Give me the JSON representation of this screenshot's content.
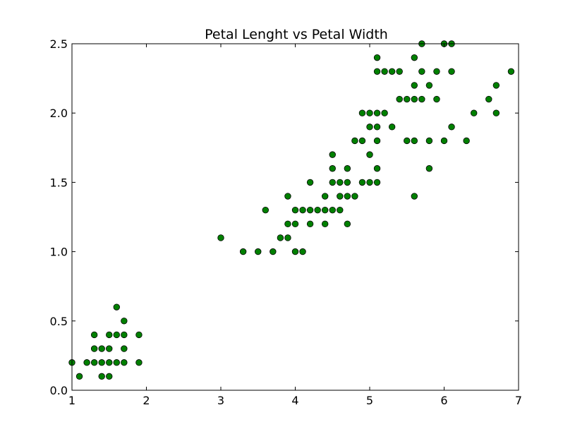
{
  "chart_data": {
    "type": "scatter",
    "title": "Petal Lenght vs Petal Width",
    "xlabel": "",
    "ylabel": "",
    "xlim": [
      1,
      7
    ],
    "ylim": [
      0,
      2.5
    ],
    "x_ticks": [
      "1",
      "2",
      "3",
      "4",
      "5",
      "6",
      "7"
    ],
    "y_ticks": [
      "0.0",
      "0.5",
      "1.0",
      "1.5",
      "2.0",
      "2.5"
    ],
    "grid": false,
    "marker_color": "#008000",
    "marker_edge_color": "#000000",
    "series": [
      {
        "points": [
          [
            1.0,
            0.2
          ],
          [
            1.1,
            0.1
          ],
          [
            1.2,
            0.2
          ],
          [
            1.3,
            0.2
          ],
          [
            1.3,
            0.3
          ],
          [
            1.3,
            0.4
          ],
          [
            1.4,
            0.1
          ],
          [
            1.4,
            0.2
          ],
          [
            1.4,
            0.3
          ],
          [
            1.5,
            0.1
          ],
          [
            1.5,
            0.2
          ],
          [
            1.5,
            0.3
          ],
          [
            1.5,
            0.4
          ],
          [
            1.6,
            0.2
          ],
          [
            1.6,
            0.4
          ],
          [
            1.6,
            0.6
          ],
          [
            1.7,
            0.2
          ],
          [
            1.7,
            0.3
          ],
          [
            1.7,
            0.4
          ],
          [
            1.7,
            0.5
          ],
          [
            1.9,
            0.2
          ],
          [
            1.9,
            0.4
          ],
          [
            3.0,
            1.1
          ],
          [
            3.3,
            1.0
          ],
          [
            3.5,
            1.0
          ],
          [
            3.6,
            1.3
          ],
          [
            3.7,
            1.0
          ],
          [
            3.8,
            1.1
          ],
          [
            3.9,
            1.1
          ],
          [
            3.9,
            1.2
          ],
          [
            3.9,
            1.4
          ],
          [
            4.0,
            1.0
          ],
          [
            4.0,
            1.2
          ],
          [
            4.0,
            1.3
          ],
          [
            4.1,
            1.0
          ],
          [
            4.1,
            1.3
          ],
          [
            4.2,
            1.2
          ],
          [
            4.2,
            1.3
          ],
          [
            4.2,
            1.5
          ],
          [
            4.3,
            1.3
          ],
          [
            4.4,
            1.2
          ],
          [
            4.4,
            1.3
          ],
          [
            4.4,
            1.4
          ],
          [
            4.5,
            1.3
          ],
          [
            4.5,
            1.5
          ],
          [
            4.5,
            1.6
          ],
          [
            4.5,
            1.7
          ],
          [
            4.6,
            1.3
          ],
          [
            4.6,
            1.4
          ],
          [
            4.6,
            1.5
          ],
          [
            4.7,
            1.2
          ],
          [
            4.7,
            1.4
          ],
          [
            4.7,
            1.5
          ],
          [
            4.7,
            1.6
          ],
          [
            4.8,
            1.4
          ],
          [
            4.8,
            1.8
          ],
          [
            4.9,
            1.5
          ],
          [
            4.9,
            1.8
          ],
          [
            4.9,
            2.0
          ],
          [
            5.0,
            1.5
          ],
          [
            5.0,
            1.7
          ],
          [
            5.0,
            1.9
          ],
          [
            5.0,
            2.0
          ],
          [
            5.1,
            1.5
          ],
          [
            5.1,
            1.6
          ],
          [
            5.1,
            1.8
          ],
          [
            5.1,
            1.9
          ],
          [
            5.1,
            2.0
          ],
          [
            5.1,
            2.3
          ],
          [
            5.1,
            2.4
          ],
          [
            5.2,
            2.0
          ],
          [
            5.2,
            2.3
          ],
          [
            5.3,
            1.9
          ],
          [
            5.3,
            2.3
          ],
          [
            5.4,
            2.1
          ],
          [
            5.4,
            2.3
          ],
          [
            5.5,
            1.8
          ],
          [
            5.5,
            2.1
          ],
          [
            5.6,
            1.4
          ],
          [
            5.6,
            1.8
          ],
          [
            5.6,
            2.1
          ],
          [
            5.6,
            2.2
          ],
          [
            5.6,
            2.4
          ],
          [
            5.7,
            2.1
          ],
          [
            5.7,
            2.3
          ],
          [
            5.7,
            2.5
          ],
          [
            5.8,
            1.6
          ],
          [
            5.8,
            1.8
          ],
          [
            5.8,
            2.2
          ],
          [
            5.9,
            2.1
          ],
          [
            5.9,
            2.3
          ],
          [
            6.0,
            1.8
          ],
          [
            6.0,
            2.5
          ],
          [
            6.1,
            1.9
          ],
          [
            6.1,
            2.3
          ],
          [
            6.1,
            2.5
          ],
          [
            6.3,
            1.8
          ],
          [
            6.4,
            2.0
          ],
          [
            6.6,
            2.1
          ],
          [
            6.7,
            2.0
          ],
          [
            6.7,
            2.2
          ],
          [
            6.9,
            2.3
          ]
        ]
      }
    ]
  }
}
